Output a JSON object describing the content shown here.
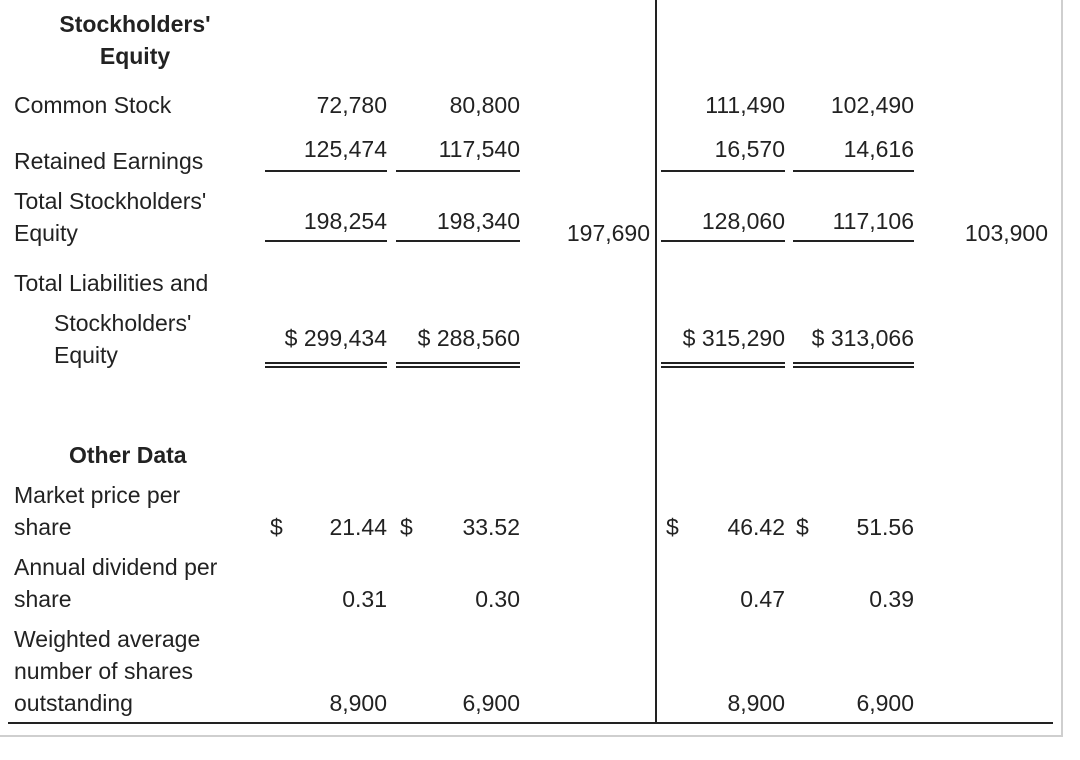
{
  "equity": {
    "heading": "Stockholders' Equity",
    "heading_line1": "Stockholders'",
    "heading_line2": "Equity",
    "rows": {
      "common_stock": {
        "label": "Common Stock",
        "a1": "72,780",
        "a2": "80,800",
        "b1": "111,490",
        "b2": "102,490"
      },
      "retained_earnings": {
        "label": "Retained Earnings",
        "a1": "125,474",
        "a2": "117,540",
        "b1": "16,570",
        "b2": "14,616"
      },
      "total_equity": {
        "label_line1": "Total Stockholders'",
        "label_line2": "Equity",
        "a1": "198,254",
        "a2": "198,340",
        "a3": "197,690",
        "b1": "128,060",
        "b2": "117,106",
        "b3": "103,900"
      },
      "total_liab": {
        "label_line1": "Total Liabilities and",
        "label_line2": "Stockholders'",
        "label_line3": "Equity",
        "a1": "$ 299,434",
        "a2": "$ 288,560",
        "b1": "$ 315,290",
        "b2": "$ 313,066"
      }
    }
  },
  "other": {
    "heading": "Other Data",
    "rows": {
      "market_price": {
        "label_line1": "Market price per",
        "label_line2": "share",
        "dollar": "$",
        "a1": "21.44",
        "a2": "$",
        "a2v": "33.52",
        "b1": "46.42",
        "b2": "$",
        "b2v": "51.56"
      },
      "dividend": {
        "label_line1": "Annual dividend per",
        "label_line2": "share",
        "a1": "0.31",
        "a2": "0.30",
        "b1": "0.47",
        "b2": "0.39"
      },
      "shares": {
        "label_line1": "Weighted average",
        "label_line2": "number of shares",
        "label_line3": "outstanding",
        "a1": "8,900",
        "a2": "6,900",
        "b1": "8,900",
        "b2": "6,900"
      }
    }
  }
}
